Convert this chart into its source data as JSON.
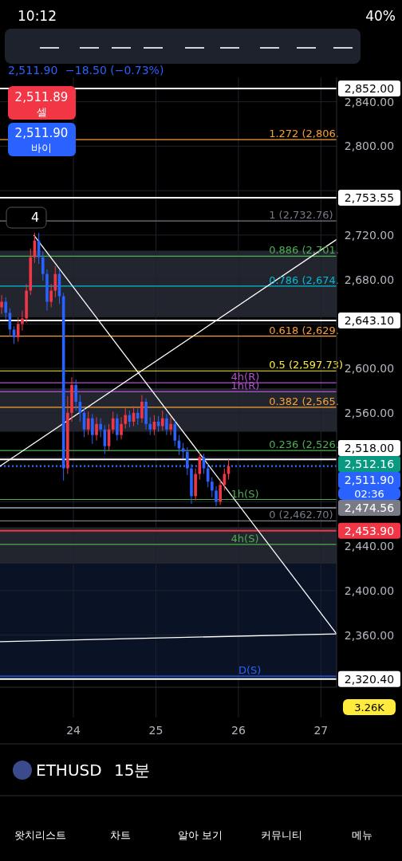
{
  "chart_data": {
    "type": "candlestick",
    "x": [
      23.13,
      23.18,
      23.23,
      23.28,
      23.33,
      23.38,
      23.43,
      23.48,
      23.53,
      23.58,
      23.63,
      23.68,
      23.73,
      23.78,
      23.83,
      23.88,
      23.93,
      23.98,
      24.03,
      24.08,
      24.13,
      24.18,
      24.23,
      24.28,
      24.33,
      24.38,
      24.43,
      24.48,
      24.53,
      24.58,
      24.63,
      24.68,
      24.73,
      24.78,
      24.83,
      24.88,
      24.93,
      24.98,
      25.03,
      25.08,
      25.13,
      25.18,
      25.23,
      25.28,
      25.33,
      25.38,
      25.43,
      25.48,
      25.53,
      25.58,
      25.63,
      25.68,
      25.73,
      25.78,
      25.83,
      25.88
    ],
    "ohlc": [
      [
        2655,
        2666,
        2649,
        2660
      ],
      [
        2660,
        2664,
        2644,
        2650
      ],
      [
        2650,
        2654,
        2629,
        2635
      ],
      [
        2635,
        2638,
        2622,
        2628
      ],
      [
        2628,
        2646,
        2624,
        2640
      ],
      [
        2640,
        2652,
        2634,
        2645
      ],
      [
        2645,
        2676,
        2641,
        2670
      ],
      [
        2670,
        2708,
        2666,
        2700
      ],
      [
        2700,
        2722,
        2695,
        2715
      ],
      [
        2715,
        2722,
        2694,
        2700
      ],
      [
        2700,
        2705,
        2679,
        2685
      ],
      [
        2685,
        2689,
        2652,
        2660
      ],
      [
        2660,
        2676,
        2655,
        2670
      ],
      [
        2670,
        2692,
        2664,
        2685
      ],
      [
        2685,
        2689,
        2658,
        2665
      ],
      [
        2665,
        2668,
        2499,
        2510
      ],
      [
        2510,
        2575,
        2505,
        2560
      ],
      [
        2560,
        2592,
        2552,
        2585
      ],
      [
        2585,
        2590,
        2562,
        2570
      ],
      [
        2570,
        2576,
        2552,
        2560
      ],
      [
        2560,
        2565,
        2538,
        2545
      ],
      [
        2545,
        2561,
        2540,
        2555
      ],
      [
        2555,
        2559,
        2532,
        2540
      ],
      [
        2540,
        2556,
        2535,
        2550
      ],
      [
        2550,
        2555,
        2538,
        2545
      ],
      [
        2545,
        2549,
        2523,
        2530
      ],
      [
        2530,
        2550,
        2526,
        2545
      ],
      [
        2545,
        2561,
        2541,
        2555
      ],
      [
        2555,
        2559,
        2535,
        2540
      ],
      [
        2540,
        2556,
        2536,
        2550
      ],
      [
        2550,
        2564,
        2546,
        2558
      ],
      [
        2558,
        2562,
        2547,
        2552
      ],
      [
        2552,
        2566,
        2548,
        2560
      ],
      [
        2560,
        2564,
        2549,
        2555
      ],
      [
        2555,
        2576,
        2551,
        2570
      ],
      [
        2570,
        2573,
        2545,
        2550
      ],
      [
        2550,
        2556,
        2540,
        2545
      ],
      [
        2545,
        2558,
        2540,
        2552
      ],
      [
        2552,
        2557,
        2543,
        2548
      ],
      [
        2548,
        2562,
        2544,
        2555
      ],
      [
        2555,
        2559,
        2540,
        2545
      ],
      [
        2545,
        2556,
        2540,
        2550
      ],
      [
        2550,
        2553,
        2530,
        2535
      ],
      [
        2535,
        2540,
        2522,
        2528
      ],
      [
        2528,
        2533,
        2519,
        2525
      ],
      [
        2525,
        2529,
        2504,
        2510
      ],
      [
        2510,
        2514,
        2478,
        2485
      ],
      [
        2485,
        2510,
        2481,
        2505
      ],
      [
        2505,
        2524,
        2500,
        2520
      ],
      [
        2520,
        2523,
        2505,
        2510
      ],
      [
        2510,
        2514,
        2493,
        2498
      ],
      [
        2498,
        2502,
        2484,
        2490
      ],
      [
        2490,
        2494,
        2476,
        2480
      ],
      [
        2480,
        2500,
        2477,
        2495
      ],
      [
        2495,
        2510,
        2490,
        2505
      ],
      [
        2505,
        2518,
        2500,
        2511.9
      ]
    ],
    "colors": [
      "#f23645",
      "#2962ff",
      "#2962ff",
      "#2962ff",
      "#f23645",
      "#f23645",
      "#f23645",
      "#f23645",
      "#f23645",
      "#2962ff",
      "#2962ff",
      "#2962ff",
      "#f23645",
      "#f23645",
      "#2962ff",
      "#2962ff",
      "#f23645",
      "#f23645",
      "#2962ff",
      "#2962ff",
      "#2962ff",
      "#f23645",
      "#2962ff",
      "#f23645",
      "#2962ff",
      "#2962ff",
      "#f23645",
      "#f23645",
      "#2962ff",
      "#f23645",
      "#f23645",
      "#2962ff",
      "#f23645",
      "#2962ff",
      "#f23645",
      "#2962ff",
      "#2962ff",
      "#f23645",
      "#2962ff",
      "#f23645",
      "#2962ff",
      "#f23645",
      "#2962ff",
      "#2962ff",
      "#2962ff",
      "#2962ff",
      "#2962ff",
      "#f23645",
      "#f23645",
      "#2962ff",
      "#2962ff",
      "#2962ff",
      "#2962ff",
      "#f23645",
      "#f23645",
      "#f23645"
    ],
    "series": [
      {
        "type": "line",
        "color": "#ffffff",
        "x": [
          23.52,
          27.19
        ],
        "values": [
          2720,
          2361
        ]
      },
      {
        "type": "line",
        "color": "#ffffff",
        "x": [
          23.11,
          27.19
        ],
        "values": [
          2512,
          2716
        ]
      },
      {
        "type": "line",
        "color": "#ffffff",
        "x": [
          23.11,
          27.19
        ],
        "values": [
          2354,
          2361
        ]
      }
    ],
    "xlim": [
      23.11,
      27.19
    ],
    "xticks": [
      24,
      25,
      26,
      27
    ],
    "ylim": [
      2313,
      2862
    ],
    "yticks": [
      {
        "value": 2840,
        "label": "2,840.00"
      },
      {
        "value": 2800,
        "label": "2,800.00"
      },
      {
        "value": 2760,
        "label": null
      },
      {
        "value": 2720,
        "label": "2,720.00"
      },
      {
        "value": 2680,
        "label": "2,680.00"
      },
      {
        "value": 2640,
        "label": null
      },
      {
        "value": 2600,
        "label": "2,600.00"
      },
      {
        "value": 2560,
        "label": "2,560.00"
      },
      {
        "value": 2520,
        "label": null
      },
      {
        "value": 2480,
        "label": null
      },
      {
        "value": 2440,
        "label": "2,440.00"
      },
      {
        "value": 2400,
        "label": "2,400.00"
      },
      {
        "value": 2360,
        "label": "2,360.00"
      }
    ],
    "grid": true,
    "bands": [
      {
        "axis": "y",
        "from": 2646,
        "to": 2706,
        "color": "#2a2e39"
      },
      {
        "axis": "y",
        "from": 2543,
        "to": 2582,
        "color": "#2a2e39"
      },
      {
        "axis": "y",
        "from": 2424,
        "to": 2457,
        "color": "#2a2e39"
      },
      {
        "axis": "y",
        "from": 2320,
        "to": 2424,
        "color": "#0c1630"
      }
    ],
    "ref_lines": [
      {
        "axis": "y",
        "value": 2852,
        "color": "#ffffff",
        "label": "2,852.00"
      },
      {
        "axis": "y",
        "value": 2806,
        "color": "#f7a035"
      },
      {
        "axis": "y",
        "value": 2753.55,
        "color": "#ffffff",
        "label": "2,753.55"
      },
      {
        "axis": "y",
        "value": 2732.76,
        "color": "#787b86"
      },
      {
        "axis": "y",
        "value": 2701,
        "color": "#4caf50"
      },
      {
        "axis": "y",
        "value": 2674,
        "color": "#00bcd4"
      },
      {
        "axis": "y",
        "value": 2643.1,
        "color": "#ffffff",
        "label": "2,643.10"
      },
      {
        "axis": "y",
        "value": 2629,
        "color": "#f7a035"
      },
      {
        "axis": "y",
        "value": 2597.73,
        "color": "#ffeb3b"
      },
      {
        "axis": "y",
        "value": 2587,
        "color": "#b44fd0"
      },
      {
        "axis": "y",
        "value": 2579,
        "color": "#b44fd0"
      },
      {
        "axis": "y",
        "value": 2565,
        "color": "#f7a035"
      },
      {
        "axis": "y",
        "value": 2526,
        "color": "#4caf50"
      },
      {
        "axis": "y",
        "value": 2518,
        "color": "#ffffff",
        "label": "2,518.00"
      },
      {
        "axis": "y",
        "value": 2512.16,
        "color": "#089981",
        "line_style": "dotted",
        "label": "2,512.16"
      },
      {
        "axis": "y",
        "value": 2511.9,
        "color": "#2962ff",
        "line_style": "dotted",
        "label": "2,511.90"
      },
      {
        "axis": "y",
        "value": 2482,
        "color": "#4caf50"
      },
      {
        "axis": "y",
        "value": 2474.56,
        "color": "#787b86",
        "label": "2,474.56"
      },
      {
        "axis": "y",
        "value": 2462.7,
        "color": "#787b86"
      },
      {
        "axis": "y",
        "value": 2453.9,
        "color": "#f23645",
        "label": "2,453.90"
      },
      {
        "axis": "y",
        "value": 2441.6,
        "color": "#4caf50"
      },
      {
        "axis": "y",
        "value": 2323,
        "color": "#2962ff"
      },
      {
        "axis": "y",
        "value": 2320.4,
        "color": "#ffffff",
        "label": "2,320.40"
      }
    ],
    "annotations": [
      "10:12",
      "40%",
      "2,511.90",
      "−18.50 (−0.73%)",
      "2,511.89",
      "셀",
      "2,511.90",
      "바이",
      "4",
      "02:36",
      "3.26K",
      "ETHUSD",
      "15분",
      "왓치리스트",
      "차트",
      "알아 보기",
      "커뮤니티",
      "메뉴",
      {
        "text": "1.272 (2,806.",
        "x": 26.37,
        "y": 2806
      },
      {
        "text": "1 (2,732.76)",
        "x": 26.37,
        "y": 2732.76
      },
      {
        "text": "0.886 (2,701.",
        "x": 26.37,
        "y": 2701
      },
      {
        "text": "0.786 (2,674.",
        "x": 26.37,
        "y": 2674
      },
      {
        "text": "0.618 (2,629.",
        "x": 26.37,
        "y": 2629
      },
      {
        "text": "0.5 (2,597.73)",
        "x": 26.37,
        "y": 2597.73
      },
      {
        "text": "4h(R)",
        "x": 25.91,
        "y": 2587
      },
      {
        "text": "1h(R)",
        "x": 25.91,
        "y": 2579
      },
      {
        "text": "0.382 (2,565.",
        "x": 26.37,
        "y": 2565
      },
      {
        "text": "0.236 (2,526.",
        "x": 26.37,
        "y": 2526
      },
      {
        "text": "1h(S)",
        "x": 25.91,
        "y": 2482
      },
      {
        "text": "0 (2,462.70)",
        "x": 26.37,
        "y": 2462.7
      },
      {
        "text": "4h(S)",
        "x": 25.91,
        "y": 2441.6
      },
      {
        "text": "D(S)",
        "x": 26.0,
        "y": 2323
      }
    ]
  }
}
